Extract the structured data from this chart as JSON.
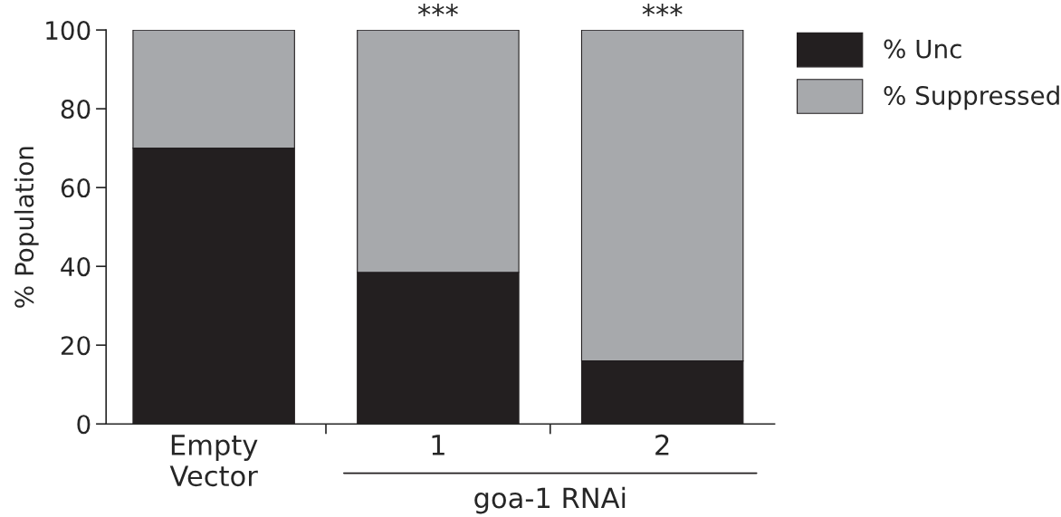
{
  "chart_data": {
    "type": "bar",
    "stacked": true,
    "ylabel": "% Population",
    "categories": [
      "Empty\nVector",
      "1",
      "2"
    ],
    "series": [
      {
        "name": "% Unc",
        "color": "#231f20",
        "values": [
          70,
          38.5,
          16
        ]
      },
      {
        "name": "% Suppressed",
        "color": "#a7a9ac",
        "values": [
          30,
          61.5,
          84
        ]
      }
    ],
    "ylim": [
      0,
      100
    ],
    "yticks": [
      0,
      20,
      40,
      60,
      80,
      100
    ],
    "grid": false,
    "legend": "top right",
    "annotations": [
      {
        "text": "***",
        "x": "1",
        "y": 100
      },
      {
        "text": "***",
        "x": "2",
        "y": 100
      },
      "goa-1 RNAi"
    ]
  }
}
